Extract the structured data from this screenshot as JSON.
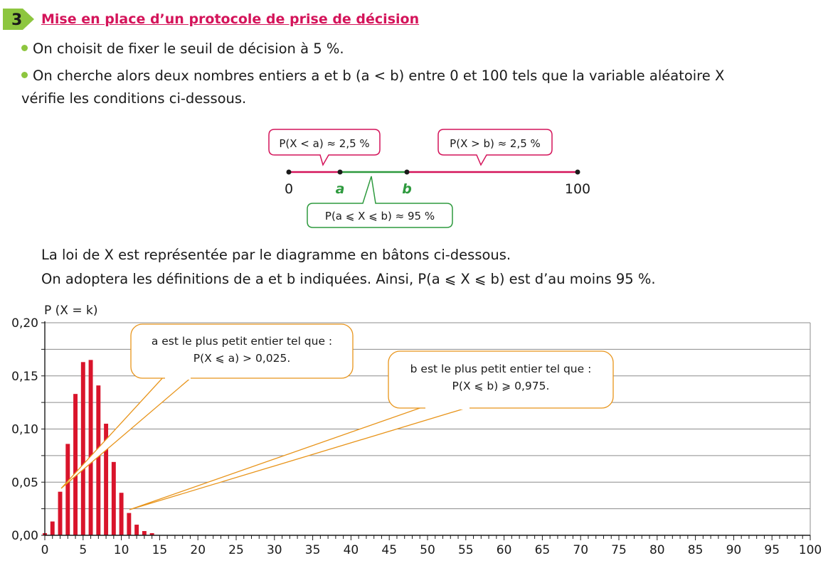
{
  "section": {
    "number": "3",
    "title": "Mise en place d’un protocole de prise de décision"
  },
  "bullets": [
    "On choisit de fixer le seuil de décision à 5 %.",
    "On cherche alors deux nombres entiers a et b (a < b) entre 0 et 100 tels que la variable aléatoire X"
  ],
  "bullet2_line2": "vérifie les conditions ci-dessous.",
  "scheme": {
    "labels": [
      "0",
      "a",
      "b",
      "100"
    ],
    "bubble_left": "P(X < a) ≈ 2,5 %",
    "bubble_right": "P(X > b) ≈ 2,5 %",
    "bubble_middle": "P(a ⩽ X ⩽ b) ≈ 95 %",
    "colors": {
      "outer": "#d4145a",
      "middle": "#2e9a3e"
    }
  },
  "text_lines": [
    "La loi de X est représentée par le diagramme en bâtons ci-dessous.",
    "On adoptera les définitions de a et b indiquées. Ainsi, P(a ⩽ X ⩽ b) est d’au moins 95 %."
  ],
  "chart_data": {
    "type": "bar",
    "ylabel": "P (X = k)",
    "ylim": [
      0,
      0.2
    ],
    "yticks": [
      "0,00",
      "0,05",
      "0,10",
      "0,15",
      "0,20"
    ],
    "xlim": [
      0,
      100
    ],
    "xticks": [
      "0",
      "5",
      "10",
      "15",
      "20",
      "25",
      "30",
      "35",
      "40",
      "45",
      "50",
      "55",
      "60",
      "65",
      "70",
      "75",
      "80",
      "85",
      "90",
      "95",
      "100"
    ],
    "x": [
      0,
      1,
      2,
      3,
      4,
      5,
      6,
      7,
      8,
      9,
      10,
      11,
      12,
      13,
      14
    ],
    "values": [
      0.002,
      0.013,
      0.041,
      0.086,
      0.133,
      0.163,
      0.165,
      0.141,
      0.105,
      0.069,
      0.04,
      0.021,
      0.01,
      0.004,
      0.002
    ],
    "bar_color": "#d9142b",
    "callouts": [
      {
        "line1": "a est le plus petit entier tel que :",
        "line2": "P(X ⩽ a) > 0,025."
      },
      {
        "line1": "b est le plus petit entier tel que :",
        "line2": "P(X ⩽ b) ⩾ 0,975."
      }
    ]
  }
}
